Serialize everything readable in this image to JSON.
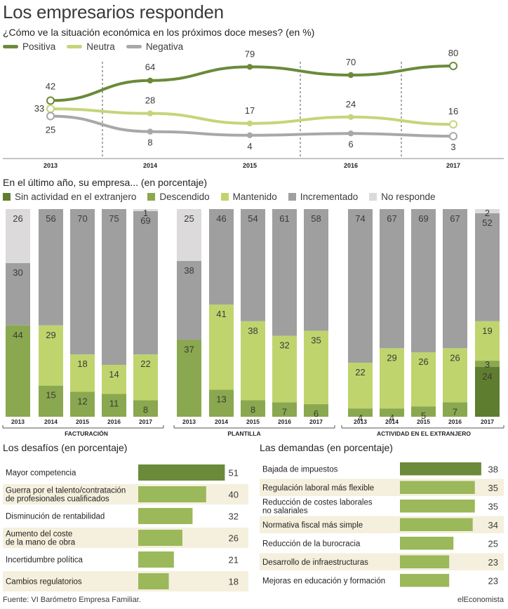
{
  "title": "Los empresarios responden",
  "source": "Fuente: VI Barómetro Empresa Familiar.",
  "brand": "elEconomista",
  "colors": {
    "positiva": "#6b8a3a",
    "neutra": "#c5d57a",
    "negativa": "#a8a8a8",
    "sin_actividad": "#5f7d2f",
    "descendido": "#8aa84f",
    "mantenido": "#c0d46e",
    "incrementado": "#a09f9f",
    "no_responde": "#dcdada",
    "row_alt": "#f4f0dd",
    "bar_dark": "#6b8a3a",
    "bar_light": "#9bb85a"
  },
  "line_chart": {
    "subtitle": "¿Cómo ve la situación económica en los próximos doce meses? (en %)",
    "legend": {
      "positiva": "Positiva",
      "neutra": "Neutra",
      "negativa": "Negativa"
    }
  },
  "bar_section": {
    "title": "En el último año, su empresa... (en porcentaje)",
    "legend": {
      "sin_actividad": "Sin actividad en el extranjero",
      "descendido": "Descendido",
      "mantenido": "Mantenido",
      "incrementado": "Incrementado",
      "no_responde": "No responde"
    }
  },
  "desafios": {
    "title": "Los desafíos (en porcentaje)"
  },
  "demandas": {
    "title": "Las demandas (en porcentaje)"
  },
  "chart_data": [
    {
      "type": "line",
      "title": "¿Cómo ve la situación económica en los próximos doce meses? (en %)",
      "x": [
        "2013",
        "2014",
        "2015",
        "2016",
        "2017"
      ],
      "series": [
        {
          "name": "Positiva",
          "values": [
            42,
            64,
            79,
            70,
            80
          ]
        },
        {
          "name": "Neutra",
          "values": [
            33,
            28,
            17,
            24,
            16
          ]
        },
        {
          "name": "Negativa",
          "values": [
            25,
            8,
            4,
            6,
            3
          ]
        }
      ],
      "grid": "vertical dashed"
    },
    {
      "type": "bar",
      "stacked": true,
      "group": "FACTURACIÓN",
      "categories": [
        "2013",
        "2014",
        "2015",
        "2016",
        "2017"
      ],
      "series": [
        {
          "name": "Descendido",
          "values": [
            44,
            15,
            12,
            11,
            8
          ]
        },
        {
          "name": "Mantenido",
          "values": [
            0,
            29,
            18,
            14,
            22
          ]
        },
        {
          "name": "Incrementado",
          "values": [
            30,
            56,
            70,
            75,
            69
          ]
        },
        {
          "name": "No responde",
          "values": [
            26,
            0,
            0,
            0,
            1
          ]
        }
      ]
    },
    {
      "type": "bar",
      "stacked": true,
      "group": "PLANTILLA",
      "categories": [
        "2013",
        "2014",
        "2015",
        "2016",
        "2017"
      ],
      "series": [
        {
          "name": "Descendido",
          "values": [
            37,
            13,
            8,
            7,
            6
          ]
        },
        {
          "name": "Mantenido",
          "values": [
            0,
            41,
            38,
            32,
            35
          ]
        },
        {
          "name": "Incrementado",
          "values": [
            38,
            46,
            54,
            61,
            58
          ]
        },
        {
          "name": "No responde",
          "values": [
            25,
            0,
            0,
            0,
            0
          ]
        }
      ]
    },
    {
      "type": "bar",
      "stacked": true,
      "group": "ACTIVIDAD EN EL EXTRANJERO",
      "categories": [
        "2013",
        "2014",
        "2015",
        "2016",
        "2017"
      ],
      "series": [
        {
          "name": "Sin actividad en el extranjero",
          "values": [
            0,
            0,
            0,
            0,
            24
          ]
        },
        {
          "name": "Descendido",
          "values": [
            4,
            4,
            5,
            7,
            3
          ]
        },
        {
          "name": "Mantenido",
          "values": [
            22,
            29,
            26,
            26,
            19
          ]
        },
        {
          "name": "Incrementado",
          "values": [
            74,
            67,
            69,
            67,
            52
          ]
        },
        {
          "name": "No responde",
          "values": [
            0,
            0,
            0,
            0,
            2
          ]
        }
      ]
    },
    {
      "type": "bar",
      "orientation": "horizontal",
      "title": "Los desafíos (en porcentaje)",
      "categories": [
        "Mayor competencia",
        "Guerra por el talento/contratación de profesionales cualificados",
        "Disminución de rentabilidad",
        "Aumento del coste de la mano de obra",
        "Incertidumbre política",
        "Cambios regulatorios"
      ],
      "values": [
        51,
        40,
        32,
        26,
        21,
        18
      ]
    },
    {
      "type": "bar",
      "orientation": "horizontal",
      "title": "Las demandas (en porcentaje)",
      "categories": [
        "Bajada de impuestos",
        "Regulación laboral más flexible",
        "Reducción de costes laborales no salariales",
        "Normativa fiscal más simple",
        "Reducción de la burocracia",
        "Desarrollo de infraestructuras",
        "Mejoras en educación y formación"
      ],
      "values": [
        38,
        35,
        35,
        34,
        25,
        23,
        23
      ]
    }
  ],
  "label_lines": {
    "desafios": [
      [
        "Mayor competencia"
      ],
      [
        "Guerra por el talento/contratación",
        "de profesionales cualificados"
      ],
      [
        "Disminución de rentabilidad"
      ],
      [
        "Aumento del coste",
        "de la mano de obra"
      ],
      [
        "Incertidumbre política"
      ],
      [
        "Cambios regulatorios"
      ]
    ],
    "demandas": [
      [
        "Bajada de impuestos"
      ],
      [
        "Regulación laboral más flexible"
      ],
      [
        "Reducción de costes laborales",
        "no salariales"
      ],
      [
        "Normativa fiscal más simple"
      ],
      [
        "Reducción de la burocracia"
      ],
      [
        "Desarrollo de infraestructuras"
      ],
      [
        "Mejoras en educación y formación"
      ]
    ]
  }
}
